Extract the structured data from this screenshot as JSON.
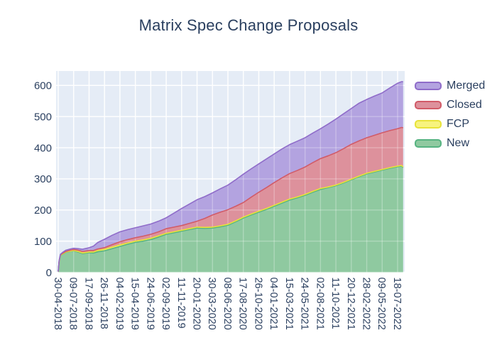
{
  "title": "Matrix Spec Change Proposals",
  "colors": {
    "plot_background": "#e5ecf6",
    "gridline": "#ffffff",
    "text": "#2a3f5f",
    "page_background": "#ffffff"
  },
  "legend": {
    "position": "right",
    "order": [
      "Merged",
      "Closed",
      "FCP",
      "New"
    ]
  },
  "chart_data": {
    "type": "area",
    "stacked": true,
    "title": "Matrix Spec Change Proposals",
    "xlabel": "",
    "ylabel": "",
    "grid": true,
    "ylim": [
      0,
      646
    ],
    "y_ticks": [
      0,
      100,
      200,
      300,
      400,
      500,
      600
    ],
    "x_tick_labels": [
      "30-04-2018",
      "09-07-2018",
      "17-09-2018",
      "26-11-2018",
      "04-02-2019",
      "15-04-2019",
      "24-06-2019",
      "02-09-2019",
      "11-11-2019",
      "20-01-2020",
      "30-03-2020",
      "08-06-2020",
      "17-08-2020",
      "26-10-2020",
      "04-01-2021",
      "15-03-2021",
      "24-05-2021",
      "02-08-2021",
      "11-10-2021",
      "20-12-2021",
      "28-02-2022",
      "09-05-2022",
      "18-07-2022"
    ],
    "x_tick_interval_days": 70,
    "days": [
      0,
      4,
      10,
      20,
      35,
      55,
      70,
      90,
      110,
      140,
      160,
      180,
      210,
      245,
      280,
      315,
      350,
      385,
      420,
      455,
      490,
      525,
      560,
      595,
      630,
      665,
      700,
      735,
      770,
      805,
      840,
      875,
      910,
      945,
      980,
      1015,
      1050,
      1085,
      1120,
      1155,
      1190,
      1225,
      1260,
      1295,
      1330,
      1365,
      1400,
      1435,
      1470,
      1505,
      1540,
      1558,
      1565
    ],
    "series": [
      {
        "name": "New",
        "fill": "#8fc9a0",
        "line": "#56b381",
        "values": [
          2,
          35,
          54,
          58,
          64,
          67,
          69,
          65,
          60,
          63,
          62,
          66,
          69,
          76,
          83,
          90,
          96,
          100,
          105,
          113,
          122,
          127,
          132,
          137,
          142,
          141,
          142,
          146,
          151,
          162,
          174,
          184,
          193,
          202,
          212,
          222,
          232,
          239,
          247,
          257,
          266,
          272,
          278,
          287,
          297,
          307,
          316,
          322,
          328,
          334,
          339,
          341,
          336
        ]
      },
      {
        "name": "FCP",
        "fill": "#f7f37e",
        "line": "#e8e339",
        "values": [
          0,
          0,
          1,
          1,
          1,
          1,
          1,
          2,
          2,
          2,
          3,
          4,
          5,
          5,
          5,
          4,
          4,
          4,
          4,
          4,
          3,
          3,
          3,
          3,
          3,
          3,
          3,
          3,
          3,
          3,
          3,
          3,
          3,
          3,
          3,
          3,
          3,
          3,
          3,
          3,
          3,
          2,
          2,
          2,
          2,
          2,
          2,
          2,
          2,
          2,
          2,
          2,
          2
        ]
      },
      {
        "name": "Closed",
        "fill": "#dd919c",
        "line": "#d15b68",
        "values": [
          0,
          1,
          1,
          2,
          2,
          3,
          3,
          4,
          5,
          5,
          5,
          5,
          5,
          8,
          10,
          11,
          11,
          12,
          13,
          13,
          15,
          15,
          15,
          17,
          19,
          29,
          39,
          44,
          47,
          47,
          47,
          54,
          61,
          67,
          73,
          78,
          82,
          85,
          88,
          92,
          96,
          100,
          104,
          108,
          112,
          113,
          114,
          116,
          118,
          119,
          120,
          122,
          126
        ]
      },
      {
        "name": "Merged",
        "fill": "#b3a3e0",
        "line": "#8f6cc9",
        "values": [
          0,
          1,
          2,
          3,
          4,
          4,
          4,
          5,
          7,
          9,
          14,
          21,
          27,
          30,
          32,
          32,
          32,
          33,
          33,
          34,
          35,
          45,
          55,
          62,
          69,
          70,
          71,
          75,
          79,
          85,
          91,
          91,
          91,
          92,
          92,
          93,
          93,
          94,
          94,
          95,
          96,
          102,
          108,
          112,
          115,
          121,
          123,
          126,
          128,
          137,
          146,
          147,
          148
        ]
      }
    ]
  }
}
